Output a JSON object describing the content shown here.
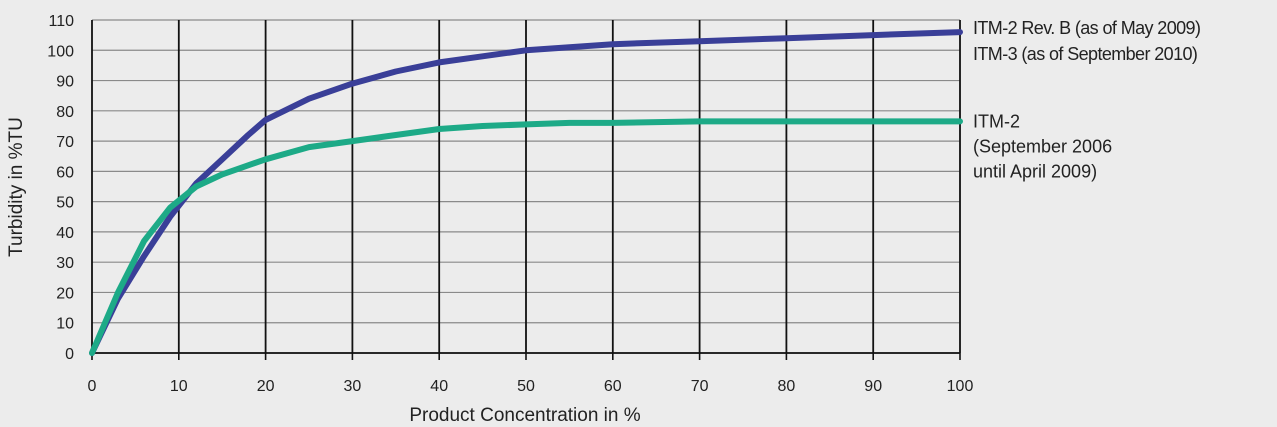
{
  "chart_data": {
    "type": "line",
    "title": "",
    "xlabel": "Product Concentration in %",
    "ylabel": "Turbidity in %TU",
    "xlim": [
      0,
      100
    ],
    "ylim": [
      0,
      110
    ],
    "x_ticks": [
      "0",
      "10",
      "20",
      "30",
      "40",
      "50",
      "60",
      "70",
      "80",
      "90",
      "100"
    ],
    "y_ticks": [
      "0",
      "10",
      "20",
      "30",
      "40",
      "50",
      "60",
      "70",
      "80",
      "90",
      "100",
      "110"
    ],
    "grid": "vertical and horizontal",
    "legend_placement": "right",
    "series": [
      {
        "label_lines": [
          "ITM-2 Rev. B (as of May 2009)",
          "ITM-3 (as of September 2010)"
        ],
        "color": "#3a3f98",
        "x": [
          0,
          3,
          6,
          9,
          12,
          15,
          18,
          20,
          25,
          30,
          35,
          40,
          45,
          50,
          55,
          60,
          70,
          80,
          90,
          100
        ],
        "y": [
          0,
          18,
          32,
          45,
          56,
          64,
          72,
          77,
          84,
          89,
          93,
          96,
          98,
          100,
          101,
          102,
          103,
          104,
          105,
          106
        ]
      },
      {
        "label_lines": [
          "ITM-2",
          "(September 2006",
          "until April 2009)"
        ],
        "color": "#1daa87",
        "x": [
          0,
          3,
          6,
          9,
          12,
          15,
          18,
          20,
          25,
          30,
          35,
          40,
          45,
          50,
          55,
          60,
          70,
          80,
          90,
          100
        ],
        "y": [
          0,
          20,
          37,
          48,
          55,
          59,
          62,
          64,
          68,
          70,
          72,
          74,
          75,
          75.5,
          76,
          76,
          76.5,
          76.5,
          76.5,
          76.5
        ]
      }
    ]
  }
}
